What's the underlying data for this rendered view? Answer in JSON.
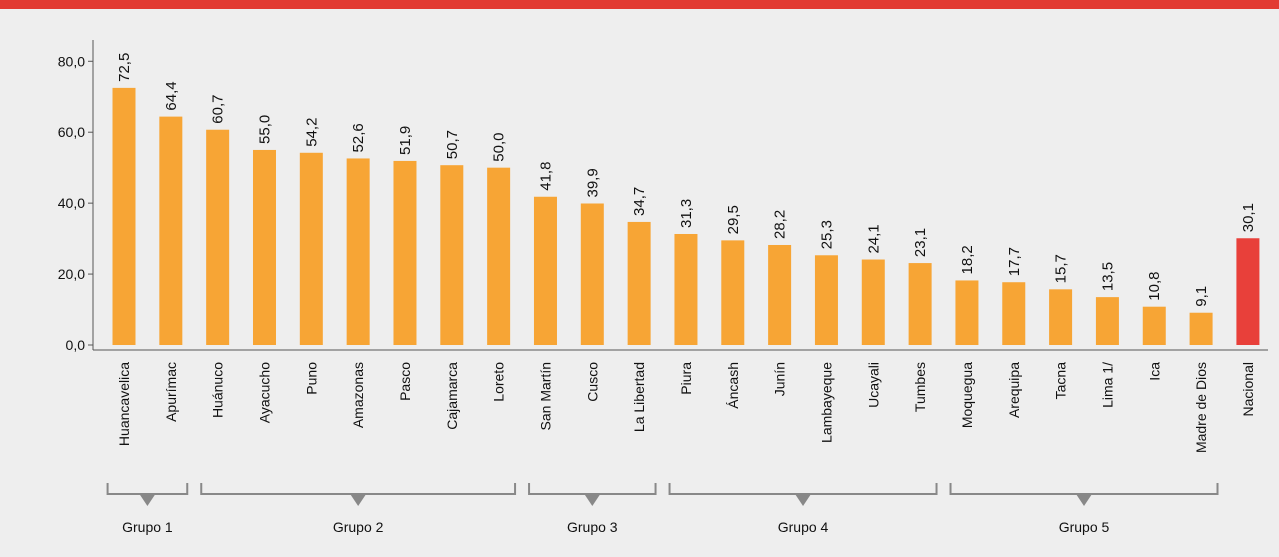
{
  "chart_data": {
    "type": "bar",
    "categories": [
      "Huancavelica",
      "Apurímac",
      "Huánuco",
      "Ayacucho",
      "Puno",
      "Amazonas",
      "Pasco",
      "Cajamarca",
      "Loreto",
      "San Martín",
      "Cusco",
      "La Libertad",
      "Piura",
      "Áncash",
      "Junín",
      "Lambayeque",
      "Ucayali",
      "Tumbes",
      "Moquegua",
      "Arequipa",
      "Tacna",
      "Lima 1/",
      "Ica",
      "Madre de Dios",
      "Nacional"
    ],
    "values": [
      72.5,
      64.4,
      60.7,
      55.0,
      54.2,
      52.6,
      51.9,
      50.7,
      50.0,
      41.8,
      39.9,
      34.7,
      31.3,
      29.5,
      28.2,
      25.3,
      24.1,
      23.1,
      18.2,
      17.7,
      15.7,
      13.5,
      10.8,
      9.1,
      30.1
    ],
    "value_labels": [
      "72,5",
      "64,4",
      "60,7",
      "55,0",
      "54,2",
      "52,6",
      "51,9",
      "50,7",
      "50,0",
      "41,8",
      "39,9",
      "34,7",
      "31,3",
      "29,5",
      "28,2",
      "25,3",
      "24,1",
      "23,1",
      "18,2",
      "17,7",
      "15,7",
      "13,5",
      "10,8",
      "9,1",
      "30,1"
    ],
    "colors": [
      "#f7a535",
      "#f7a535",
      "#f7a535",
      "#f7a535",
      "#f7a535",
      "#f7a535",
      "#f7a535",
      "#f7a535",
      "#f7a535",
      "#f7a535",
      "#f7a535",
      "#f7a535",
      "#f7a535",
      "#f7a535",
      "#f7a535",
      "#f7a535",
      "#f7a535",
      "#f7a535",
      "#f7a535",
      "#f7a535",
      "#f7a535",
      "#f7a535",
      "#f7a535",
      "#f7a535",
      "#e8403a"
    ],
    "ylim": [
      0,
      86
    ],
    "yticks": [
      {
        "value": 0,
        "label": "0,0"
      },
      {
        "value": 20,
        "label": "20,0"
      },
      {
        "value": 40,
        "label": "40,0"
      },
      {
        "value": 60,
        "label": "60,0"
      },
      {
        "value": 80,
        "label": "80,0"
      }
    ],
    "groups": [
      {
        "label": "Grupo 1",
        "size": 2
      },
      {
        "label": "Grupo 2",
        "size": 7
      },
      {
        "label": "Grupo 3",
        "size": 3
      },
      {
        "label": "Grupo 4",
        "size": 6
      },
      {
        "label": "Grupo 5",
        "size": 6
      }
    ]
  }
}
